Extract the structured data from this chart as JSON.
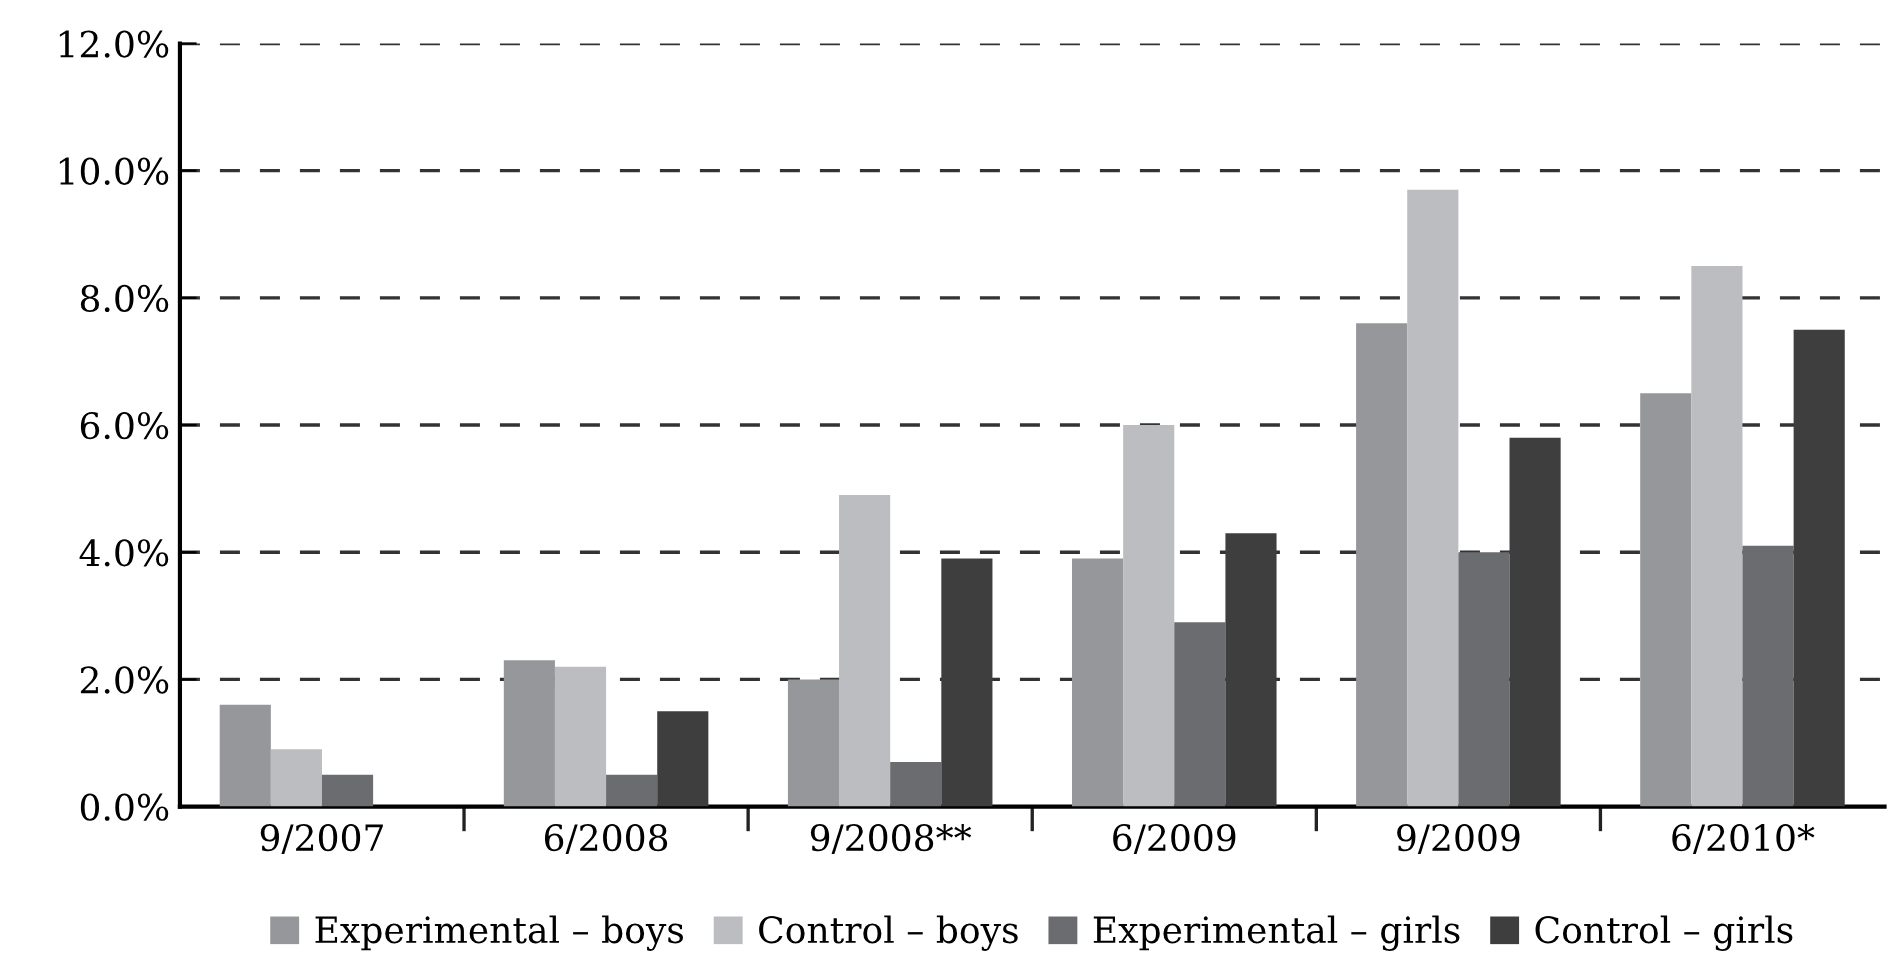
{
  "chart_data": {
    "type": "bar",
    "categories": [
      "9/2007",
      "6/2008",
      "9/2008**",
      "6/2009",
      "9/2009",
      "6/2010*"
    ],
    "series": [
      {
        "name": "Experimental – boys",
        "color": "#96979b",
        "values": [
          1.6,
          2.3,
          2.0,
          3.9,
          7.6,
          6.5
        ]
      },
      {
        "name": "Control – boys",
        "color": "#bcbdc1",
        "values": [
          0.9,
          2.2,
          4.9,
          6.0,
          9.7,
          8.5
        ]
      },
      {
        "name": "Experimental – girls",
        "color": "#6b6c70",
        "values": [
          0.5,
          0.5,
          0.7,
          2.9,
          4.0,
          4.1
        ]
      },
      {
        "name": "Control – girls",
        "color": "#3e3e3e",
        "values": [
          null,
          1.5,
          3.9,
          4.3,
          5.8,
          7.5
        ]
      }
    ],
    "ylim": [
      0,
      12
    ],
    "yticks": [
      {
        "value": 0,
        "label": "0.0%"
      },
      {
        "value": 2,
        "label": "2.0%"
      },
      {
        "value": 4,
        "label": "4.0%"
      },
      {
        "value": 6,
        "label": "6.0%"
      },
      {
        "value": 8,
        "label": "8.0%"
      },
      {
        "value": 10,
        "label": "10.0%"
      },
      {
        "value": 12,
        "label": "12.0%"
      }
    ],
    "grid": "y",
    "legend": "bottom"
  }
}
